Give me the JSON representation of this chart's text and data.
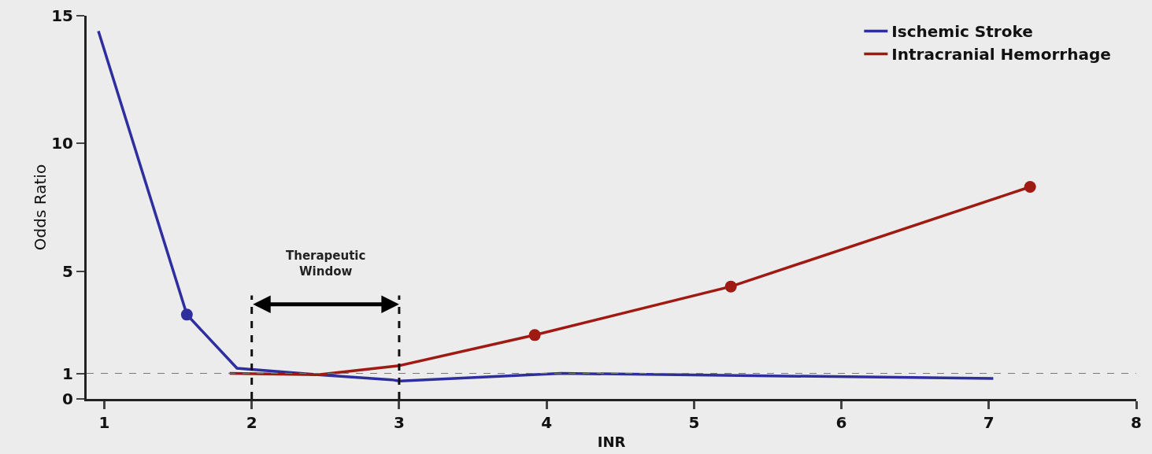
{
  "chart_data": {
    "type": "line",
    "xlabel": "INR",
    "ylabel": "Odds Ratio",
    "xlim": [
      0.88,
      8
    ],
    "xticks": [
      1,
      2,
      3,
      4,
      5,
      6,
      7,
      8
    ],
    "ylim": [
      0,
      15
    ],
    "yticks": [
      0,
      1,
      5,
      10,
      15
    ],
    "grid": false,
    "legend": "top right",
    "line_style": "solid",
    "series": [
      {
        "name": "Ischemic Stroke",
        "color": "#2e2e9e",
        "marker": "none",
        "x": [
          0.96,
          1.56,
          1.9,
          2.45,
          2.95,
          3.0,
          4.1,
          7.03
        ],
        "values": [
          14.4,
          3.3,
          1.2,
          0.95,
          0.75,
          0.7,
          1.0,
          0.8
        ]
      },
      {
        "name": "Intracranial Hemorrhage",
        "color": "#9e1a12",
        "marker": "none",
        "x": [
          1.85,
          2.45,
          3.0,
          3.92,
          5.25,
          7.28
        ],
        "values": [
          1.0,
          0.95,
          1.3,
          2.5,
          4.4,
          8.3
        ]
      },
      {
        "type": "scatter",
        "color": "#2e2e9e",
        "marker": "circle",
        "x": [
          1.56
        ],
        "values": [
          3.3
        ]
      },
      {
        "type": "scatter",
        "color": "#9e1a12",
        "marker": "circle",
        "x": [
          3.92,
          5.25,
          7.28
        ],
        "values": [
          2.5,
          4.4,
          8.3
        ]
      }
    ],
    "ref_lines": [
      {
        "axis": "y",
        "value": 1,
        "color": "#777777",
        "line_style": "dashed"
      },
      {
        "axis": "x",
        "value": 2,
        "color": "#111111",
        "line_style": "dashed"
      },
      {
        "axis": "x",
        "value": 3,
        "color": "#111111",
        "line_style": "dashed"
      }
    ],
    "annotations": [
      "Therapeutic Window"
    ]
  }
}
